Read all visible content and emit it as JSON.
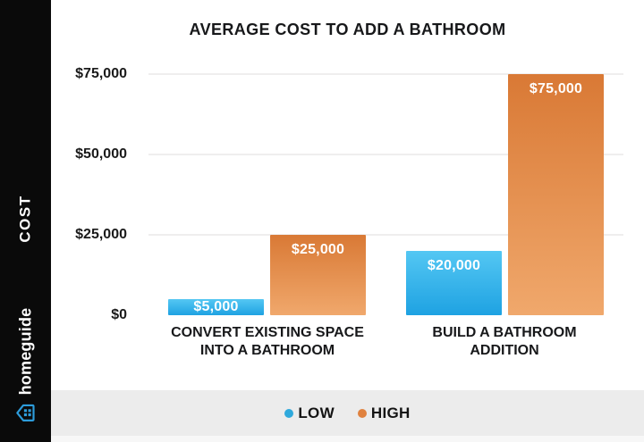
{
  "sidebar": {
    "axis_title": "COST",
    "brand_name": "homeguide",
    "brand_icon_color": "#2D9CDB"
  },
  "legend": {
    "items": [
      {
        "label": "LOW",
        "color": "#2FA9DC"
      },
      {
        "label": "HIGH",
        "color": "#E0823F"
      }
    ]
  },
  "chart_data": {
    "type": "bar",
    "title": "AVERAGE COST TO ADD A BATHROOM",
    "xlabel": "",
    "ylabel": "COST",
    "ylim": [
      0,
      75000
    ],
    "grid": true,
    "legend_position": "bottom",
    "y_ticks": [
      {
        "value": 0,
        "label": "$0"
      },
      {
        "value": 25000,
        "label": "$25,000"
      },
      {
        "value": 50000,
        "label": "$50,000"
      },
      {
        "value": 75000,
        "label": "$75,000"
      }
    ],
    "categories": [
      "CONVERT EXISTING SPACE INTO A BATHROOM",
      "BUILD A BATHROOM ADDITION"
    ],
    "categories_lines": [
      [
        "CONVERT EXISTING SPACE",
        "INTO A BATHROOM"
      ],
      [
        "BUILD A BATHROOM",
        "ADDITION"
      ]
    ],
    "series": [
      {
        "name": "LOW",
        "values": [
          5000,
          20000
        ],
        "data_labels": [
          "$5,000",
          "$20,000"
        ],
        "color_top": "#54C7F3",
        "color_bottom": "#1EA2E2"
      },
      {
        "name": "HIGH",
        "values": [
          25000,
          75000
        ],
        "data_labels": [
          "$25,000",
          "$75,000"
        ],
        "color_top": "#D97935",
        "color_bottom": "#F0A86C"
      }
    ]
  }
}
